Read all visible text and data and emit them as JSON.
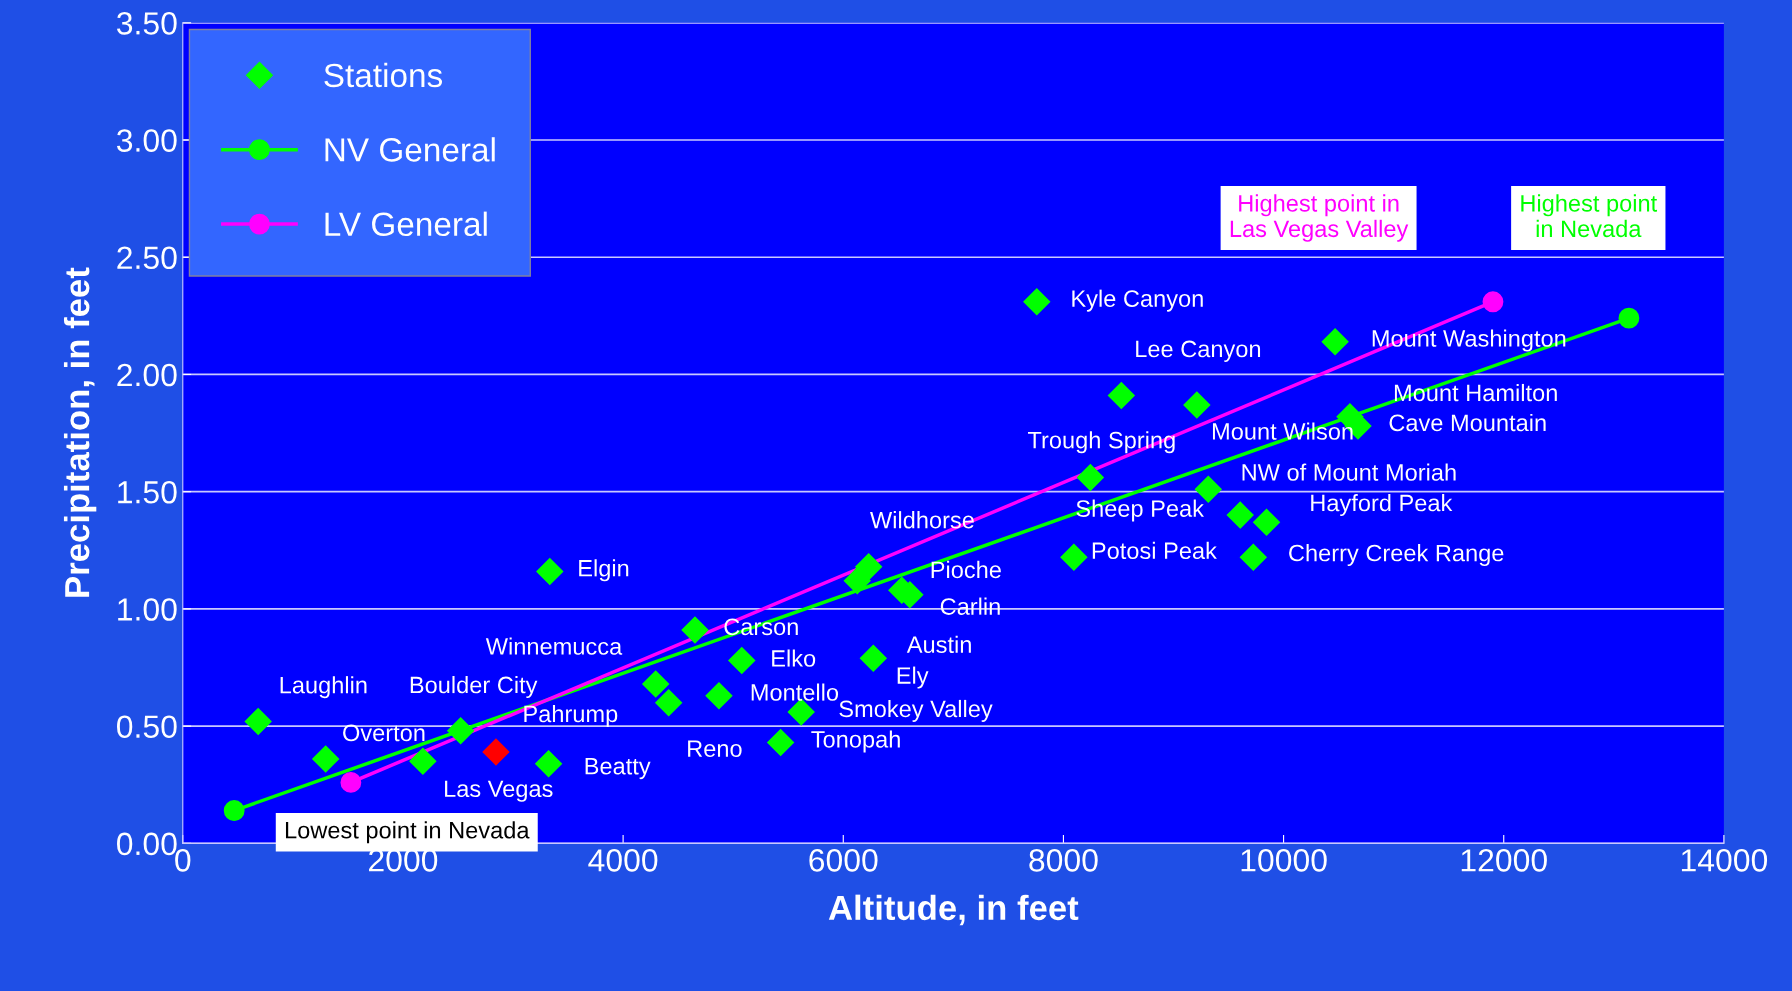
{
  "chart_data": {
    "type": "scatter",
    "xlabel": "Altitude, in feet",
    "ylabel": "Precipitation, in feet",
    "xlim": [
      0,
      14000
    ],
    "xticks": [
      0,
      2000,
      4000,
      6000,
      8000,
      10000,
      12000,
      14000
    ],
    "ylim": [
      0,
      3.5
    ],
    "yticks": [
      {
        "value": 0,
        "label": "0.00"
      },
      {
        "value": 0.5,
        "label": "0.50"
      },
      {
        "value": 1,
        "label": "1.00"
      },
      {
        "value": 1.5,
        "label": "1.50"
      },
      {
        "value": 2,
        "label": "2.00"
      },
      {
        "value": 2.5,
        "label": "2.50"
      },
      {
        "value": 3,
        "label": "3.00"
      },
      {
        "value": 3.5,
        "label": "3.50"
      }
    ],
    "grid": "y",
    "legend": "top left",
    "series": [
      {
        "name": "Stations",
        "marker": "diamond",
        "color": "#00ff00",
        "x": [
          685,
          1298,
          2181,
          2524,
          2845,
          3323,
          3334,
          4296,
          4414,
          4653,
          4871,
          5078,
          5431,
          5618,
          6127,
          6231,
          6532,
          6605,
          6273,
          7758,
          8526,
          9212,
          10468,
          10603,
          10676,
          8245,
          9316,
          9606,
          9845,
          8095,
          9725
        ],
        "values": [
          0.52,
          0.36,
          0.35,
          0.48,
          0.39,
          0.34,
          1.16,
          0.68,
          0.6,
          0.91,
          0.63,
          0.78,
          0.43,
          0.56,
          1.12,
          1.18,
          1.08,
          1.06,
          0.79,
          2.31,
          1.91,
          1.87,
          2.14,
          1.82,
          1.78,
          1.56,
          1.51,
          1.4,
          1.37,
          1.22,
          1.22
        ],
        "colors": [
          "#00ff00",
          "#00ff00",
          "#00ff00",
          "#00ff00",
          "#ff0000",
          "#00ff00",
          "#00ff00",
          "#00ff00",
          "#00ff00",
          "#00ff00",
          "#00ff00",
          "#00ff00",
          "#00ff00",
          "#00ff00",
          "#00ff00",
          "#00ff00",
          "#00ff00",
          "#00ff00",
          "#00ff00",
          "#00ff00",
          "#00ff00",
          "#00ff00",
          "#00ff00",
          "#00ff00",
          "#00ff00",
          "#00ff00",
          "#00ff00",
          "#00ff00",
          "#00ff00",
          "#00ff00",
          "#00ff00"
        ]
      },
      {
        "name": "NV General",
        "type": "line",
        "marker": "circle",
        "line_style": "solid",
        "color": "#00ff00",
        "x": [
          467,
          13137
        ],
        "values": [
          0.14,
          2.24
        ]
      },
      {
        "name": "LV General",
        "type": "line",
        "marker": "circle",
        "line_style": "solid",
        "color": "#ff00ff",
        "x": [
          1527,
          11902
        ],
        "values": [
          0.26,
          2.31
        ]
      }
    ],
    "annotations": [
      {
        "text": "Laughlin",
        "x": 685,
        "y": 0.52
      },
      {
        "text": "Overton",
        "x": 1298,
        "y": 0.36
      },
      {
        "text": "Boulder City",
        "x": 2181,
        "y": 0.35
      },
      {
        "text": "Pahrump",
        "x": 2524,
        "y": 0.48
      },
      {
        "text": "Las Vegas",
        "x": 2845,
        "y": 0.39
      },
      {
        "text": "Beatty",
        "x": 3323,
        "y": 0.34
      },
      {
        "text": "Elgin",
        "x": 3334,
        "y": 1.16
      },
      {
        "text": "Winnemucca",
        "x": 4296,
        "y": 0.68
      },
      {
        "text": "Reno",
        "x": 4414,
        "y": 0.6
      },
      {
        "text": "Carson",
        "x": 4653,
        "y": 0.91
      },
      {
        "text": "Montello",
        "x": 4871,
        "y": 0.63
      },
      {
        "text": "Elko",
        "x": 5078,
        "y": 0.78
      },
      {
        "text": "Tonopah",
        "x": 5431,
        "y": 0.43
      },
      {
        "text": "Smokey Valley",
        "x": 5618,
        "y": 0.56
      },
      {
        "text": "Wildhorse",
        "x": 6231,
        "y": 1.18
      },
      {
        "text": "Pioche",
        "x": 6532,
        "y": 1.08
      },
      {
        "text": "Carlin",
        "x": 6605,
        "y": 1.06
      },
      {
        "text": "Austin",
        "x": 6273,
        "y": 0.79
      },
      {
        "text": "Ely",
        "x": 6273,
        "y": 0.79
      },
      {
        "text": "Kyle Canyon",
        "x": 7758,
        "y": 2.31
      },
      {
        "text": "Lee Canyon",
        "x": 8526,
        "y": 1.91
      },
      {
        "text": "Mount Wilson",
        "x": 9212,
        "y": 1.87
      },
      {
        "text": "Mount Washington",
        "x": 10468,
        "y": 2.14
      },
      {
        "text": "Mount Hamilton",
        "x": 10603,
        "y": 1.82
      },
      {
        "text": "Cave Mountain",
        "x": 10676,
        "y": 1.78
      },
      {
        "text": "Trough Spring",
        "x": 8245,
        "y": 1.56
      },
      {
        "text": "NW of Mount Moriah",
        "x": 9316,
        "y": 1.51
      },
      {
        "text": "Sheep Peak",
        "x": 9606,
        "y": 1.4
      },
      {
        "text": "Hayford Peak",
        "x": 9845,
        "y": 1.37
      },
      {
        "text": "Potosi Peak",
        "x": 8095,
        "y": 1.22
      },
      {
        "text": "Cherry Creek Range",
        "x": 9725,
        "y": 1.22
      },
      {
        "text": "Lowest point in Nevada",
        "x": 467,
        "y": 0.14
      },
      "Highest point in\nLas Vegas Valley",
      "Highest point\nin Nevada"
    ]
  }
}
